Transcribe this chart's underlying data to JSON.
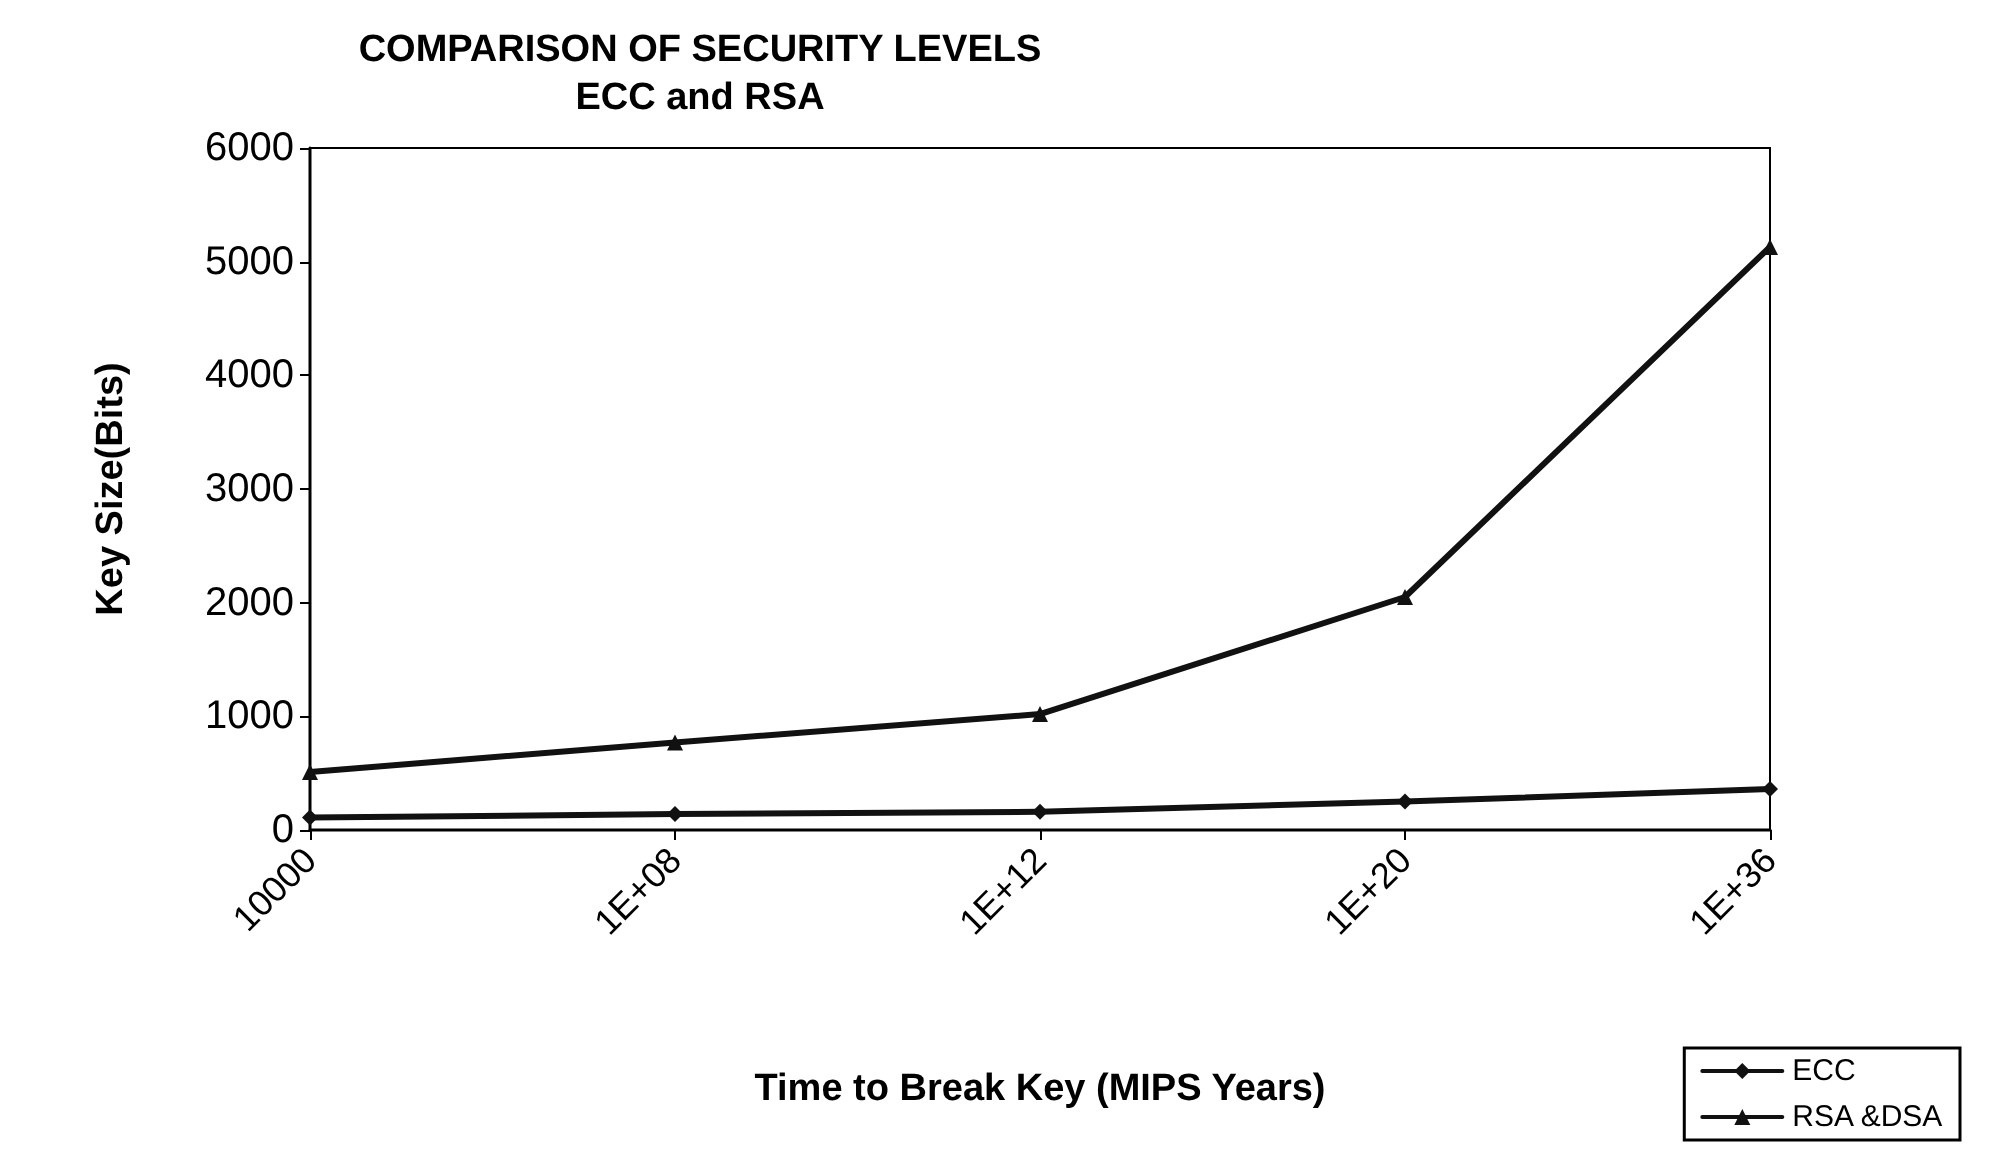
{
  "chart_data": {
    "type": "line",
    "title": "COMPARISON OF SECURITY LEVELS\nECC and RSA",
    "xlabel": "Time to Break Key (MIPS Years)",
    "ylabel": "Key Size(Bits)",
    "categories": [
      "10000",
      "1E+08",
      "1E+12",
      "1E+20",
      "1E+36"
    ],
    "series": [
      {
        "name": "ECC",
        "color": "#111111",
        "values": [
          110,
          140,
          160,
          250,
          360
        ],
        "marker": "diamond"
      },
      {
        "name": "RSA &DSA",
        "color": "#111111",
        "values": [
          510,
          770,
          1020,
          2050,
          5130
        ],
        "marker": "triangle"
      }
    ],
    "ylim": [
      0,
      6000
    ],
    "yticks": [
      0,
      1000,
      2000,
      3000,
      4000,
      5000,
      6000
    ],
    "grid": false,
    "legend": "bottom right",
    "line_style": "solid"
  }
}
